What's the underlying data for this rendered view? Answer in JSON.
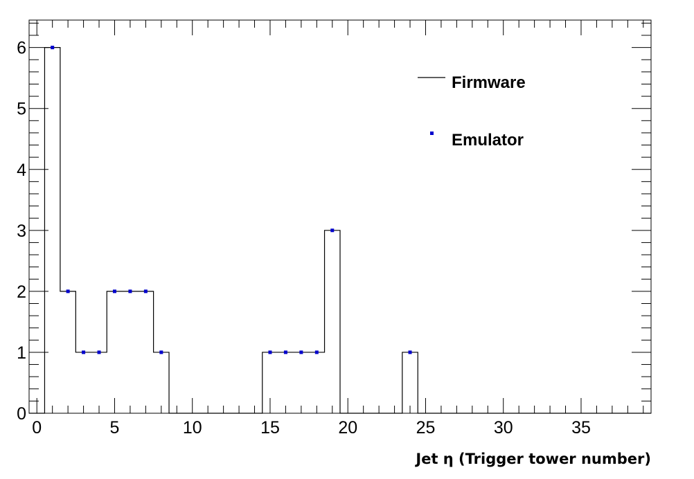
{
  "chart_data": {
    "type": "histogram",
    "title": "",
    "xlabel": "Jet η (Trigger tower number)",
    "ylabel": "",
    "xlim": [
      -0.5,
      39.5
    ],
    "ylim": [
      0,
      6.45
    ],
    "x_ticks": [
      0,
      5,
      10,
      15,
      20,
      25,
      30,
      35
    ],
    "x_tick_labels": [
      "0",
      "5",
      "10",
      "15",
      "20",
      "25",
      "30",
      "35"
    ],
    "y_ticks": [
      0,
      1,
      2,
      3,
      4,
      5,
      6
    ],
    "y_tick_labels": [
      "0",
      "1",
      "2",
      "3",
      "4",
      "5",
      "6"
    ],
    "bin_width": 1,
    "legend": {
      "placement": "top-right"
    },
    "series": [
      {
        "name": "Firmware",
        "style": "step-line",
        "color": "#000000",
        "bins": [
          {
            "x": 1,
            "y": 6
          },
          {
            "x": 2,
            "y": 2
          },
          {
            "x": 3,
            "y": 1
          },
          {
            "x": 4,
            "y": 1
          },
          {
            "x": 5,
            "y": 2
          },
          {
            "x": 6,
            "y": 2
          },
          {
            "x": 7,
            "y": 2
          },
          {
            "x": 8,
            "y": 1
          },
          {
            "x": 15,
            "y": 1
          },
          {
            "x": 16,
            "y": 1
          },
          {
            "x": 17,
            "y": 1
          },
          {
            "x": 18,
            "y": 1
          },
          {
            "x": 19,
            "y": 3
          },
          {
            "x": 24,
            "y": 1
          }
        ]
      },
      {
        "name": "Emulator",
        "style": "markers",
        "color": "#0000cc",
        "points": [
          {
            "x": 1,
            "y": 6
          },
          {
            "x": 2,
            "y": 2
          },
          {
            "x": 3,
            "y": 1
          },
          {
            "x": 4,
            "y": 1
          },
          {
            "x": 5,
            "y": 2
          },
          {
            "x": 6,
            "y": 2
          },
          {
            "x": 7,
            "y": 2
          },
          {
            "x": 8,
            "y": 1
          },
          {
            "x": 15,
            "y": 1
          },
          {
            "x": 16,
            "y": 1
          },
          {
            "x": 17,
            "y": 1
          },
          {
            "x": 18,
            "y": 1
          },
          {
            "x": 19,
            "y": 3
          },
          {
            "x": 24,
            "y": 1
          }
        ]
      }
    ]
  }
}
